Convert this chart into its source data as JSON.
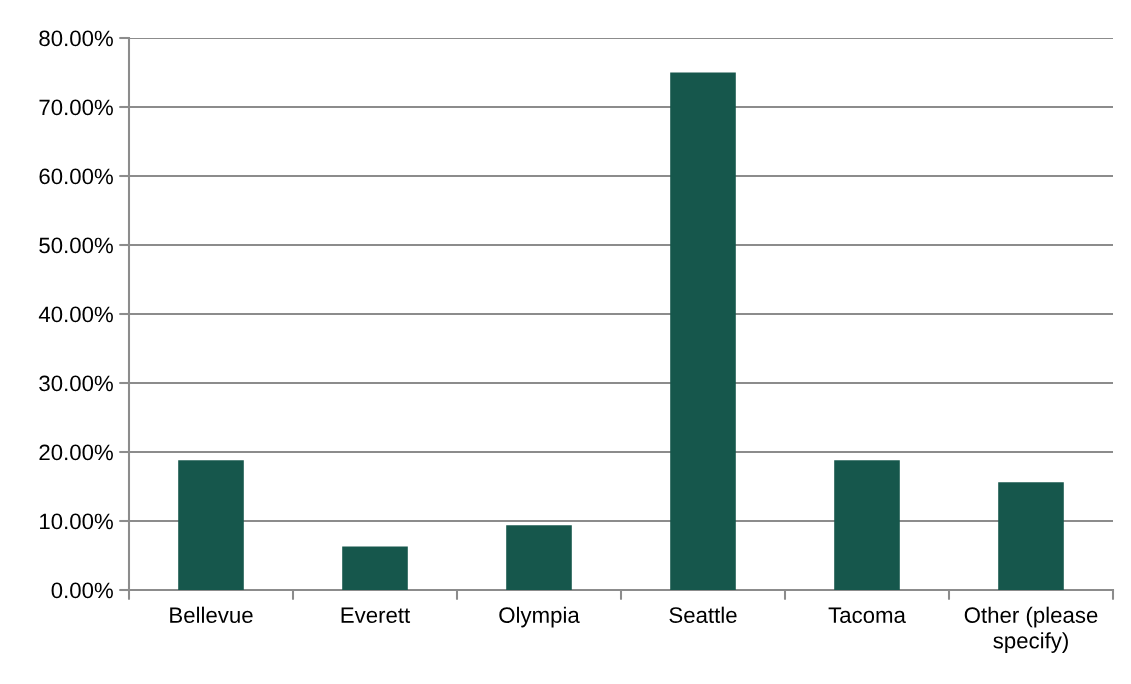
{
  "chart_data": {
    "type": "bar",
    "categories": [
      "Bellevue",
      "Everett",
      "Olympia",
      "Seattle",
      "Tacoma",
      "Other (please specify)"
    ],
    "values": [
      18.8,
      6.3,
      9.4,
      75.0,
      18.8,
      15.6
    ],
    "color": "#16574c",
    "ylim": [
      0,
      80
    ],
    "yticks": [
      {
        "value": 0,
        "label": "0.00%"
      },
      {
        "value": 10,
        "label": "10.00%"
      },
      {
        "value": 20,
        "label": "20.00%"
      },
      {
        "value": 30,
        "label": "30.00%"
      },
      {
        "value": 40,
        "label": "40.00%"
      },
      {
        "value": 50,
        "label": "50.00%"
      },
      {
        "value": 60,
        "label": "60.00%"
      },
      {
        "value": 70,
        "label": "70.00%"
      },
      {
        "value": 80,
        "label": "80.00%"
      }
    ],
    "grid": "y",
    "legend": false
  }
}
